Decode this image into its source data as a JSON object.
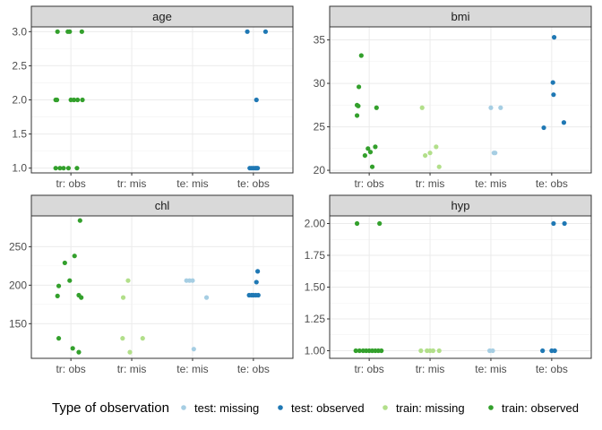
{
  "chart_data": {
    "type": "scatter",
    "layout": "facet-grid-2x2",
    "categories": [
      "tr: obs",
      "tr: mis",
      "te: mis",
      "te: obs"
    ],
    "legend": {
      "title": "Type of observation",
      "position": "bottom",
      "entries": [
        {
          "name": "test: missing",
          "color": "#A6CEE3"
        },
        {
          "name": "test: observed",
          "color": "#1F78B4"
        },
        {
          "name": "train: missing",
          "color": "#B2DF8A"
        },
        {
          "name": "train: observed",
          "color": "#33A02C"
        }
      ]
    },
    "panels": [
      {
        "title": "age",
        "ylim": [
          0.93,
          3.07
        ],
        "yticks": [
          1.0,
          1.5,
          2.0,
          2.5,
          3.0
        ],
        "tick_labels": [
          "1.0",
          "1.5",
          "2.0",
          "2.5",
          "3.0"
        ],
        "series": [
          {
            "name": "train: observed",
            "points": [
              [
                -0.22,
                3
              ],
              [
                -0.05,
                3
              ],
              [
                -0.02,
                3
              ],
              [
                0.18,
                3
              ],
              [
                -0.25,
                2
              ],
              [
                -0.23,
                2
              ],
              [
                0.0,
                2
              ],
              [
                0.05,
                2
              ],
              [
                0.11,
                2
              ],
              [
                0.19,
                2
              ],
              [
                -0.25,
                1
              ],
              [
                -0.18,
                1
              ],
              [
                -0.12,
                1
              ],
              [
                -0.04,
                1
              ],
              [
                0.1,
                1
              ]
            ]
          },
          {
            "name": "test: observed",
            "points": [
              [
                2.9,
                3
              ],
              [
                3.2,
                3
              ],
              [
                3.05,
                2
              ],
              [
                2.94,
                1
              ],
              [
                2.97,
                1
              ],
              [
                3.0,
                1
              ],
              [
                3.03,
                1
              ],
              [
                3.05,
                1
              ],
              [
                3.07,
                1
              ]
            ]
          }
        ]
      },
      {
        "title": "bmi",
        "ylim": [
          19.7,
          36.5
        ],
        "yticks": [
          20,
          25,
          30,
          35
        ],
        "tick_labels": [
          "20",
          "25",
          "30",
          "35"
        ],
        "series": [
          {
            "name": "train: observed",
            "points": [
              [
                -0.13,
                33.2
              ],
              [
                -0.17,
                29.6
              ],
              [
                -0.2,
                27.5
              ],
              [
                -0.18,
                27.4
              ],
              [
                -0.2,
                26.3
              ],
              [
                0.12,
                27.2
              ],
              [
                -0.02,
                22.5
              ],
              [
                0.1,
                22.7
              ],
              [
                0.02,
                22.1
              ],
              [
                -0.07,
                21.7
              ],
              [
                0.05,
                20.4
              ]
            ]
          },
          {
            "name": "train: missing",
            "points": [
              [
                0.87,
                27.2
              ],
              [
                0.92,
                21.7
              ],
              [
                1.0,
                22.0
              ],
              [
                1.1,
                22.7
              ],
              [
                1.15,
                20.4
              ]
            ]
          },
          {
            "name": "test: missing",
            "points": [
              [
                2.0,
                27.2
              ],
              [
                2.16,
                27.2
              ],
              [
                2.05,
                22.0
              ],
              [
                2.07,
                22.0
              ]
            ]
          },
          {
            "name": "test: observed",
            "points": [
              [
                3.04,
                35.3
              ],
              [
                3.02,
                30.1
              ],
              [
                3.03,
                28.7
              ],
              [
                2.87,
                24.9
              ],
              [
                3.2,
                25.5
              ]
            ]
          }
        ]
      },
      {
        "title": "chl",
        "ylim": [
          105,
          290
        ],
        "yticks": [
          150,
          200,
          250
        ],
        "tick_labels": [
          "150",
          "200",
          "250"
        ],
        "series": [
          {
            "name": "train: observed",
            "points": [
              [
                0.15,
                284
              ],
              [
                0.06,
                238
              ],
              [
                -0.1,
                229
              ],
              [
                -0.02,
                206
              ],
              [
                -0.2,
                199
              ],
              [
                -0.22,
                186
              ],
              [
                0.13,
                187
              ],
              [
                0.17,
                184
              ],
              [
                -0.2,
                131
              ],
              [
                0.03,
                118
              ],
              [
                0.13,
                113
              ]
            ]
          },
          {
            "name": "train: missing",
            "points": [
              [
                0.94,
                206
              ],
              [
                0.86,
                184
              ],
              [
                0.85,
                131
              ],
              [
                1.18,
                131
              ],
              [
                0.97,
                113
              ]
            ]
          },
          {
            "name": "test: missing",
            "points": [
              [
                1.9,
                206
              ],
              [
                1.95,
                206
              ],
              [
                2.0,
                206
              ],
              [
                2.23,
                184
              ],
              [
                2.02,
                117
              ]
            ]
          },
          {
            "name": "test: observed",
            "points": [
              [
                3.07,
                218
              ],
              [
                3.05,
                204
              ],
              [
                2.93,
                187
              ],
              [
                2.97,
                187
              ],
              [
                3.0,
                187
              ],
              [
                3.04,
                187
              ],
              [
                3.08,
                187
              ]
            ]
          }
        ]
      },
      {
        "title": "hyp",
        "ylim": [
          0.94,
          2.06
        ],
        "yticks": [
          1.0,
          1.25,
          1.5,
          1.75,
          2.0
        ],
        "tick_labels": [
          "1.00",
          "1.25",
          "1.50",
          "1.75",
          "2.00"
        ],
        "series": [
          {
            "name": "train: observed",
            "points": [
              [
                -0.2,
                2
              ],
              [
                0.17,
                2
              ],
              [
                -0.22,
                1
              ],
              [
                -0.16,
                1
              ],
              [
                -0.1,
                1
              ],
              [
                -0.05,
                1
              ],
              [
                0.0,
                1
              ],
              [
                0.05,
                1
              ],
              [
                0.1,
                1
              ],
              [
                0.15,
                1
              ],
              [
                0.2,
                1
              ]
            ]
          },
          {
            "name": "train: missing",
            "points": [
              [
                0.85,
                1
              ],
              [
                0.95,
                1
              ],
              [
                1.0,
                1
              ],
              [
                1.05,
                1
              ],
              [
                1.15,
                1
              ]
            ]
          },
          {
            "name": "test: missing",
            "points": [
              [
                1.98,
                1
              ],
              [
                2.03,
                1
              ]
            ]
          },
          {
            "name": "test: observed",
            "points": [
              [
                3.03,
                2
              ],
              [
                3.21,
                2
              ],
              [
                2.85,
                1
              ],
              [
                3.0,
                1
              ],
              [
                3.05,
                1
              ]
            ]
          }
        ]
      }
    ]
  }
}
